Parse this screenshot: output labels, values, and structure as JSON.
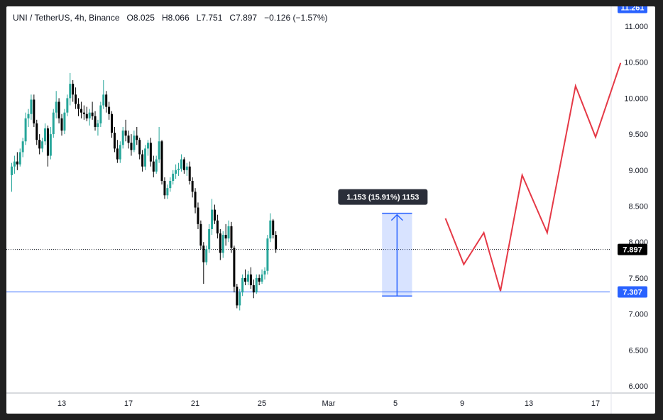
{
  "header": {
    "symbol": "UNI / TetherUS, 4h, Binance",
    "open_label": "O",
    "open": "8.025",
    "high_label": "H",
    "high": "8.066",
    "low_label": "L",
    "low": "7.751",
    "close_label": "C",
    "close": "7.897",
    "change": "−0.126 (−1.57%)"
  },
  "colors": {
    "up": "#26a69a",
    "down": "#000000",
    "projection": "#e53946",
    "measure": "#2962ff",
    "support_line": "#2962ff",
    "last_price_tag": "#000000",
    "top_tag": "#2962ff"
  },
  "chart_data": {
    "type": "candlestick",
    "price_axis_ticks": [
      "11.000",
      "10.500",
      "10.000",
      "9.500",
      "9.000",
      "8.500",
      "8.000",
      "7.500",
      "7.000",
      "6.500",
      "6.000"
    ],
    "time_axis_ticks": [
      "13",
      "17",
      "21",
      "25",
      "Mar",
      "5",
      "9",
      "13",
      "17"
    ],
    "ylim": [
      5.95,
      11.26
    ],
    "price_tags": {
      "top": "11.261",
      "last": "7.897",
      "support": "7.307"
    },
    "last_price": 7.897,
    "support_level": 7.307,
    "measure_tool": {
      "label": "1.153 (15.91%) 1153",
      "from": 7.25,
      "to": 8.4,
      "start_day": 4.3,
      "end_day": 6.0
    },
    "projection": {
      "x": [
        "Mar 7",
        "Mar 8",
        "Mar 9",
        "Mar 10",
        "Mar 11",
        "Mar 12",
        "Mar 14",
        "Mar 16",
        "Mar 17",
        "Mar 18"
      ],
      "y": [
        8.33,
        7.69,
        8.13,
        7.32,
        8.93,
        8.13,
        10.17,
        9.46,
        10.49,
        10.49
      ]
    },
    "projection_days": [
      7.0,
      8.1,
      9.3,
      10.3,
      11.6,
      13.1,
      14.8,
      16.0,
      17.5
    ],
    "projection_values": [
      8.33,
      7.69,
      8.13,
      7.32,
      8.93,
      8.13,
      10.17,
      9.46,
      10.49
    ],
    "candle_day_start": 10.0,
    "candle_step_days": 0.1667,
    "candles": [
      [
        8.93,
        9.1,
        8.7,
        9.05
      ],
      [
        9.05,
        9.2,
        8.95,
        9.12
      ],
      [
        9.12,
        9.25,
        9.0,
        9.08
      ],
      [
        9.08,
        9.3,
        9.05,
        9.25
      ],
      [
        9.25,
        9.45,
        9.18,
        9.4
      ],
      [
        9.4,
        9.8,
        9.35,
        9.72
      ],
      [
        9.72,
        9.85,
        9.6,
        9.78
      ],
      [
        9.78,
        10.05,
        9.7,
        9.98
      ],
      [
        9.98,
        10.05,
        9.6,
        9.65
      ],
      [
        9.65,
        9.7,
        9.35,
        9.42
      ],
      [
        9.42,
        9.5,
        9.22,
        9.3
      ],
      [
        9.3,
        9.45,
        9.25,
        9.4
      ],
      [
        9.4,
        9.65,
        9.35,
        9.58
      ],
      [
        9.58,
        9.62,
        9.05,
        9.2
      ],
      [
        9.2,
        9.6,
        9.15,
        9.5
      ],
      [
        9.5,
        9.85,
        9.45,
        9.8
      ],
      [
        9.8,
        10.1,
        9.72,
        9.95
      ],
      [
        9.95,
        10.0,
        9.65,
        9.72
      ],
      [
        9.72,
        9.78,
        9.48,
        9.55
      ],
      [
        9.55,
        9.85,
        9.5,
        9.8
      ],
      [
        9.8,
        10.05,
        9.75,
        10.0
      ],
      [
        10.0,
        10.35,
        9.9,
        10.2
      ],
      [
        10.2,
        10.25,
        9.95,
        10.05
      ],
      [
        10.05,
        10.15,
        9.85,
        9.92
      ],
      [
        9.92,
        10.0,
        9.75,
        9.85
      ],
      [
        9.85,
        9.95,
        9.72,
        9.8
      ],
      [
        9.8,
        9.9,
        9.7,
        9.78
      ],
      [
        9.78,
        9.88,
        9.68,
        9.72
      ],
      [
        9.72,
        9.85,
        9.62,
        9.8
      ],
      [
        9.8,
        9.95,
        9.7,
        9.75
      ],
      [
        9.75,
        9.82,
        9.55,
        9.6
      ],
      [
        9.6,
        9.7,
        9.48,
        9.65
      ],
      [
        9.65,
        9.95,
        9.6,
        9.9
      ],
      [
        9.9,
        10.25,
        9.85,
        10.05
      ],
      [
        10.05,
        10.1,
        9.8,
        9.88
      ],
      [
        9.88,
        9.95,
        9.7,
        9.78
      ],
      [
        9.78,
        9.82,
        9.45,
        9.52
      ],
      [
        9.52,
        9.6,
        9.25,
        9.3
      ],
      [
        9.3,
        9.42,
        9.1,
        9.15
      ],
      [
        9.15,
        9.4,
        9.1,
        9.35
      ],
      [
        9.35,
        9.6,
        9.3,
        9.55
      ],
      [
        9.55,
        9.7,
        9.4,
        9.48
      ],
      [
        9.48,
        9.55,
        9.3,
        9.38
      ],
      [
        9.38,
        9.5,
        9.2,
        9.28
      ],
      [
        9.28,
        9.55,
        9.25,
        9.48
      ],
      [
        9.48,
        9.6,
        9.35,
        9.42
      ],
      [
        9.42,
        9.45,
        9.15,
        9.22
      ],
      [
        9.22,
        9.28,
        8.98,
        9.05
      ],
      [
        9.05,
        9.35,
        9.0,
        9.3
      ],
      [
        9.3,
        9.42,
        9.2,
        9.38
      ],
      [
        9.38,
        9.45,
        9.05,
        9.12
      ],
      [
        9.12,
        9.2,
        8.9,
        8.98
      ],
      [
        8.98,
        9.2,
        8.95,
        9.15
      ],
      [
        9.15,
        9.6,
        9.1,
        9.4
      ],
      [
        9.4,
        9.42,
        8.8,
        8.85
      ],
      [
        8.85,
        8.9,
        8.6,
        8.65
      ],
      [
        8.65,
        8.8,
        8.6,
        8.75
      ],
      [
        8.75,
        8.9,
        8.7,
        8.85
      ],
      [
        8.85,
        9.0,
        8.8,
        8.95
      ],
      [
        8.95,
        9.08,
        8.88,
        9.0
      ],
      [
        9.0,
        9.1,
        8.92,
        9.02
      ],
      [
        9.02,
        9.22,
        8.98,
        9.15
      ],
      [
        9.15,
        9.18,
        8.95,
        9.0
      ],
      [
        9.0,
        9.1,
        8.92,
        9.05
      ],
      [
        9.05,
        9.12,
        8.8,
        8.85
      ],
      [
        8.85,
        8.9,
        8.62,
        8.7
      ],
      [
        8.7,
        8.75,
        8.4,
        8.48
      ],
      [
        8.48,
        8.55,
        8.18,
        8.25
      ],
      [
        8.25,
        8.3,
        7.9,
        7.95
      ],
      [
        7.95,
        8.0,
        7.42,
        7.72
      ],
      [
        7.72,
        7.95,
        7.68,
        7.9
      ],
      [
        7.9,
        8.25,
        7.85,
        8.18
      ],
      [
        8.18,
        8.6,
        8.1,
        8.45
      ],
      [
        8.45,
        8.52,
        8.25,
        8.3
      ],
      [
        8.3,
        8.38,
        8.05,
        8.12
      ],
      [
        8.12,
        8.18,
        7.75,
        7.85
      ],
      [
        7.85,
        8.15,
        7.78,
        8.1
      ],
      [
        8.1,
        8.25,
        7.95,
        8.05
      ],
      [
        8.05,
        8.3,
        8.0,
        8.22
      ],
      [
        8.22,
        8.28,
        7.85,
        7.92
      ],
      [
        7.92,
        7.95,
        7.3,
        7.38
      ],
      [
        7.38,
        7.42,
        7.08,
        7.12
      ],
      [
        7.12,
        7.35,
        7.05,
        7.3
      ],
      [
        7.3,
        7.55,
        7.25,
        7.5
      ],
      [
        7.5,
        7.62,
        7.4,
        7.45
      ],
      [
        7.45,
        7.6,
        7.4,
        7.55
      ],
      [
        7.55,
        7.65,
        7.35,
        7.4
      ],
      [
        7.4,
        7.48,
        7.22,
        7.3
      ],
      [
        7.3,
        7.55,
        7.28,
        7.5
      ],
      [
        7.5,
        7.55,
        7.4,
        7.45
      ],
      [
        7.45,
        7.62,
        7.42,
        7.55
      ],
      [
        7.55,
        7.65,
        7.48,
        7.6
      ],
      [
        7.6,
        8.1,
        7.55,
        8.05
      ],
      [
        8.05,
        8.4,
        8.0,
        8.3
      ],
      [
        8.3,
        8.32,
        8.05,
        8.1
      ],
      [
        8.1,
        8.15,
        7.85,
        7.9
      ]
    ]
  }
}
